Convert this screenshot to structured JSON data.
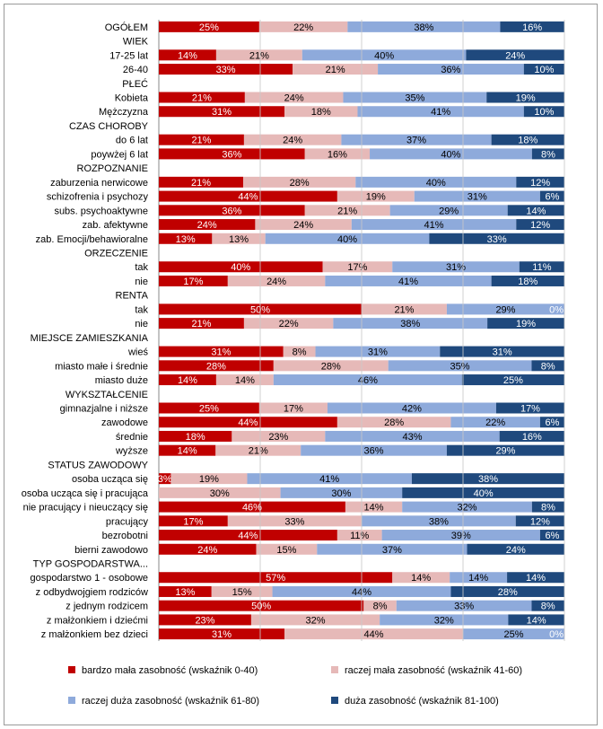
{
  "chart_data": {
    "type": "bar",
    "orientation": "horizontal",
    "stacked": "100%",
    "grid": true,
    "legend_position": "bottom",
    "series": [
      {
        "name": "bardzo mała zasobność (wskaźnik 0-40)",
        "color": "#c00000"
      },
      {
        "name": "raczej mała zasobność (wskaźnik 41-60)",
        "color": "#e6b9b8"
      },
      {
        "name": "raczej duża zasobność (wskaźnik 61-80)",
        "color": "#8eaadb"
      },
      {
        "name": "duża zasobność (wskaźnik 81-100)",
        "color": "#1f497d"
      }
    ],
    "rows": [
      {
        "label": "OGÓŁEM",
        "values": [
          25,
          22,
          38,
          16
        ]
      },
      {
        "label": "WIEK",
        "header": true
      },
      {
        "label": "17-25 lat",
        "values": [
          14,
          21,
          40,
          24
        ]
      },
      {
        "label": "26-40",
        "values": [
          33,
          21,
          36,
          10
        ]
      },
      {
        "label": "PŁEĆ",
        "header": true
      },
      {
        "label": "Kobieta",
        "values": [
          21,
          24,
          35,
          19
        ]
      },
      {
        "label": "Mężczyzna",
        "values": [
          31,
          18,
          41,
          10
        ]
      },
      {
        "label": "CZAS CHOROBY",
        "header": true
      },
      {
        "label": "do 6 lat",
        "values": [
          21,
          24,
          37,
          18
        ]
      },
      {
        "label": "poywżej 6 lat",
        "values": [
          36,
          16,
          40,
          8
        ]
      },
      {
        "label": "ROZPOZNANIE",
        "header": true
      },
      {
        "label": "zaburzenia nerwicowe",
        "values": [
          21,
          28,
          40,
          12
        ]
      },
      {
        "label": "schizofrenia i psychozy",
        "values": [
          44,
          19,
          31,
          6
        ]
      },
      {
        "label": "subs. psychoaktywne",
        "values": [
          36,
          21,
          29,
          14
        ]
      },
      {
        "label": "zab. afektywne",
        "values": [
          24,
          24,
          41,
          12
        ]
      },
      {
        "label": "zab. Emocji/behawioralne",
        "values": [
          13,
          13,
          40,
          33
        ]
      },
      {
        "label": "ORZECZENIE",
        "header": true
      },
      {
        "label": "tak",
        "values": [
          40,
          17,
          31,
          11
        ]
      },
      {
        "label": "nie",
        "values": [
          17,
          24,
          41,
          18
        ]
      },
      {
        "label": "RENTA",
        "header": true
      },
      {
        "label": "tak",
        "values": [
          50,
          21,
          29,
          0
        ]
      },
      {
        "label": "nie",
        "values": [
          21,
          22,
          38,
          19
        ]
      },
      {
        "label": "MIEJSCE ZAMIESZKANIA",
        "header": true
      },
      {
        "label": "wieś",
        "values": [
          31,
          8,
          31,
          31
        ]
      },
      {
        "label": "miasto małe i średnie",
        "values": [
          28,
          28,
          35,
          8
        ]
      },
      {
        "label": "miasto duże",
        "values": [
          14,
          14,
          46,
          25
        ]
      },
      {
        "label": "WYKSZTAŁCENIE",
        "header": true
      },
      {
        "label": "gimnazjalne i niższe",
        "values": [
          25,
          17,
          42,
          17
        ]
      },
      {
        "label": "zawodowe",
        "values": [
          44,
          28,
          22,
          6
        ]
      },
      {
        "label": "średnie",
        "values": [
          18,
          23,
          43,
          16
        ]
      },
      {
        "label": "wyższe",
        "values": [
          14,
          21,
          36,
          29
        ]
      },
      {
        "label": "STATUS ZAWODOWY",
        "header": true
      },
      {
        "label": "osoba ucząca się",
        "values": [
          3,
          19,
          41,
          38
        ]
      },
      {
        "label": "osoba ucząca się i pracująca",
        "values": [
          0,
          30,
          30,
          40
        ]
      },
      {
        "label": "nie pracujący i nieuczący się",
        "values": [
          46,
          14,
          32,
          8
        ]
      },
      {
        "label": "pracujący",
        "values": [
          17,
          33,
          38,
          12
        ]
      },
      {
        "label": "bezrobotni",
        "values": [
          44,
          11,
          39,
          6
        ]
      },
      {
        "label": "bierni zawodowo",
        "values": [
          24,
          15,
          37,
          24
        ]
      },
      {
        "label": "TYP GOSPODARSTWA...",
        "header": true
      },
      {
        "label": "gospodarstwo 1 - osobowe",
        "values": [
          57,
          14,
          14,
          14
        ]
      },
      {
        "label": "z odbydwojgiem rodziców",
        "values": [
          13,
          15,
          44,
          28
        ]
      },
      {
        "label": "z jednym rodzicem",
        "values": [
          50,
          8,
          33,
          8
        ]
      },
      {
        "label": "z małżonkiem i dziećmi",
        "values": [
          23,
          32,
          32,
          14
        ]
      },
      {
        "label": "z małżonkiem bez dzieci",
        "values": [
          31,
          44,
          25,
          0
        ]
      }
    ]
  }
}
